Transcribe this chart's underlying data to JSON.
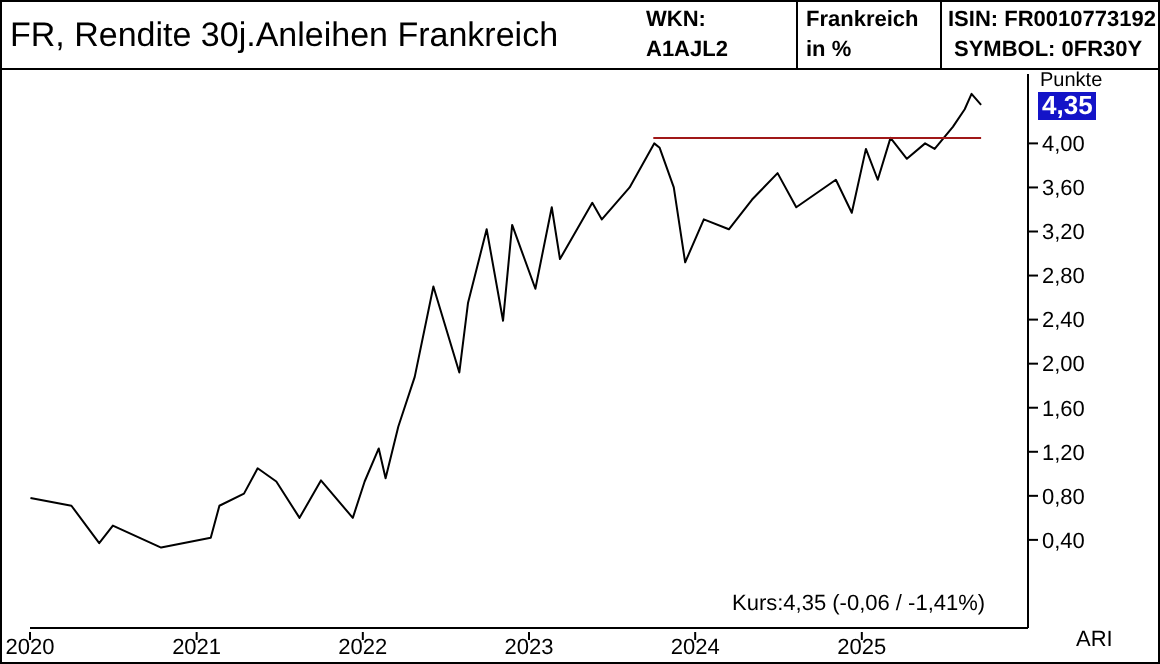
{
  "chart_data": {
    "type": "line",
    "title": "FR, Rendite 30j.Anleihen Frankreich",
    "ylabel": "Punkte",
    "annotations": [
      "WKN: A1AJL2",
      "Frankreich in %",
      "ISIN: FR0010773192",
      "SYMBOL: 0FR30Y",
      "Kurs:4,35 (-0,06 / -1,41%)",
      "ARI",
      "4,35"
    ],
    "series": [
      {
        "color": "#000000",
        "x": [
          "2020-01-02",
          "2020-04-01",
          "2020-06-01",
          "2020-07-01",
          "2020-10-15",
          "2021-02-01",
          "2021-02-20",
          "2021-04-15",
          "2021-05-15",
          "2021-06-25",
          "2021-08-15",
          "2021-10-01",
          "2021-12-10",
          "2022-01-05",
          "2022-02-05",
          "2022-02-20",
          "2022-03-20",
          "2022-04-25",
          "2022-06-05",
          "2022-08-01",
          "2022-08-20",
          "2022-09-30",
          "2022-11-05",
          "2022-11-25",
          "2023-01-15",
          "2023-02-20",
          "2023-03-10",
          "2023-05-20",
          "2023-06-10",
          "2023-08-10",
          "2023-10-03",
          "2023-10-15",
          "2023-11-15",
          "2023-12-10",
          "2024-01-20",
          "2024-03-15",
          "2024-05-05",
          "2024-06-30",
          "2024-08-10",
          "2024-11-05",
          "2024-12-10",
          "2025-01-10",
          "2025-02-05",
          "2025-03-05",
          "2025-04-10",
          "2025-05-20",
          "2025-06-10",
          "2025-07-20",
          "2025-08-15",
          "2025-08-30",
          "2025-09-20"
        ],
        "values": [
          0.78,
          0.71,
          0.37,
          0.53,
          0.33,
          0.42,
          0.71,
          0.82,
          1.05,
          0.93,
          0.6,
          0.94,
          0.6,
          0.93,
          1.23,
          0.96,
          1.43,
          1.88,
          2.7,
          1.92,
          2.55,
          3.22,
          2.39,
          3.26,
          2.68,
          3.42,
          2.95,
          3.46,
          3.31,
          3.6,
          4.0,
          3.96,
          3.6,
          2.92,
          3.31,
          3.22,
          3.49,
          3.73,
          3.42,
          3.67,
          3.37,
          3.95,
          3.67,
          4.05,
          3.86,
          4.0,
          3.95,
          4.15,
          4.31,
          4.45,
          4.35
        ]
      },
      {
        "type": "line",
        "color": "#a01818",
        "x": [
          "2023-10-01",
          "2025-09-20"
        ],
        "values": [
          4.05,
          4.05
        ]
      }
    ],
    "xlim": [
      "2020-01-01",
      "2026-01-01"
    ],
    "xticks": [
      "2020",
      "2021",
      "2022",
      "2023",
      "2024",
      "2025"
    ],
    "ylim": [
      -0.4,
      4.63
    ],
    "yticks": [
      {
        "value": 0.4,
        "label": "0,40"
      },
      {
        "value": 0.8,
        "label": "0,80"
      },
      {
        "value": 1.2,
        "label": "1,20"
      },
      {
        "value": 1.6,
        "label": "1,60"
      },
      {
        "value": 2.0,
        "label": "2,00"
      },
      {
        "value": 2.4,
        "label": "2,40"
      },
      {
        "value": 2.8,
        "label": "2,80"
      },
      {
        "value": 3.2,
        "label": "3,20"
      },
      {
        "value": 3.6,
        "label": "3,60"
      },
      {
        "value": 4.0,
        "label": "4,00"
      }
    ],
    "grid": false
  }
}
